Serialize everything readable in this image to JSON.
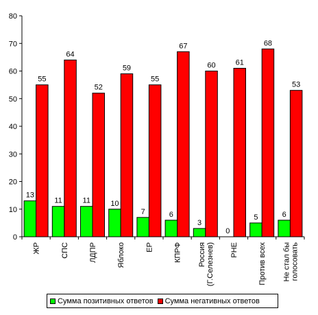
{
  "chart_data": {
    "type": "bar",
    "categories": [
      "ЖР",
      "СПС",
      "ЛДПР",
      "Яблоко",
      "ЕР",
      "КПРФ",
      "Россия (Г.Селезнев)",
      "РНЕ",
      "Против всех",
      "Не стал бы голосовать"
    ],
    "category_lines": [
      [
        "ЖР"
      ],
      [
        "СПС"
      ],
      [
        "ЛДПР"
      ],
      [
        "Яблоко"
      ],
      [
        "ЕР"
      ],
      [
        "КПРФ"
      ],
      [
        "Россия",
        "(Г.Селезнев)"
      ],
      [
        "РНЕ"
      ],
      [
        "Против всех"
      ],
      [
        "Не стал бы",
        "голосовать"
      ]
    ],
    "series": [
      {
        "name": "Сумма позитивных ответов",
        "color": "#00ff00",
        "values": [
          13,
          11,
          11,
          10,
          7,
          6,
          3,
          0,
          5,
          6
        ]
      },
      {
        "name": "Сумма негативных  ответов",
        "color": "#ff0000",
        "values": [
          55,
          64,
          52,
          59,
          55,
          67,
          60,
          61,
          68,
          53
        ]
      }
    ],
    "ylim": [
      0,
      80
    ],
    "yticks": [
      0,
      10,
      20,
      30,
      40,
      50,
      60,
      70,
      80
    ],
    "grid": false,
    "data_labels": true,
    "legend_position": "bottom"
  }
}
